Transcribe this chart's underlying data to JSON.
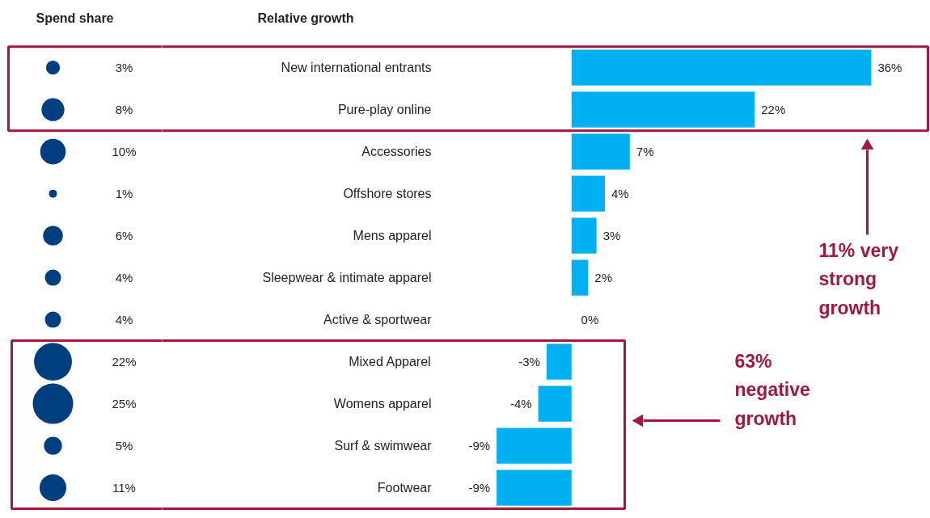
{
  "chart_data": [
    {
      "type": "other",
      "title": "Spend share",
      "color": "#003f7f",
      "values": [
        3,
        8,
        10,
        1,
        6,
        4,
        4,
        22,
        25,
        5,
        11
      ],
      "value_labels": [
        "3%",
        "8%",
        "10%",
        "1%",
        "6%",
        "4%",
        "4%",
        "22%",
        "25%",
        "5%",
        "11%"
      ]
    },
    {
      "type": "bar",
      "orientation": "horizontal",
      "title": "Relative growth",
      "color": "#00b0f0",
      "categories": [
        "New international entrants",
        "Pure-play online",
        "Accessories",
        "Offshore stores",
        "Mens apparel",
        "Sleepwear & intimate apparel",
        "Active & sportwear",
        "Mixed Apparel",
        "Womens apparel",
        "Surf & swimwear",
        "Footwear"
      ],
      "values": [
        36,
        22,
        7,
        4,
        3,
        2,
        0,
        -3,
        -4,
        -9,
        -9
      ],
      "value_labels": [
        "36%",
        "22%",
        "7%",
        "4%",
        "3%",
        "2%",
        "0%",
        "-3%",
        "-4%",
        "-9%",
        "-9%"
      ],
      "annotations": [
        "11% very\nstrong\ngrowth",
        "63%\nnegative\ngrowth"
      ]
    }
  ]
}
